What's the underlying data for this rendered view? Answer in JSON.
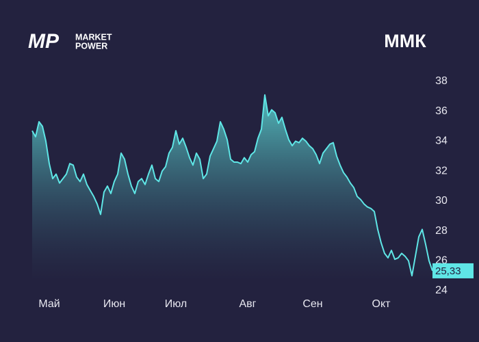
{
  "logo": {
    "mark": "MP",
    "line1": "MARKET",
    "line2": "POWER"
  },
  "chart_data": {
    "type": "area",
    "title": "ММК",
    "categories": [
      null,
      null,
      null,
      null,
      null,
      "Май",
      null,
      null,
      null,
      null,
      null,
      null,
      null,
      null,
      null,
      null,
      null,
      null,
      null,
      null,
      null,
      null,
      null,
      null,
      "Июн",
      null,
      null,
      null,
      null,
      null,
      null,
      null,
      null,
      null,
      null,
      null,
      null,
      null,
      null,
      null,
      null,
      null,
      "Июл",
      null,
      null,
      null,
      null,
      null,
      null,
      null,
      null,
      null,
      null,
      null,
      null,
      null,
      null,
      null,
      null,
      null,
      null,
      null,
      null,
      "Авг",
      null,
      null,
      null,
      null,
      null,
      null,
      null,
      null,
      null,
      null,
      null,
      null,
      null,
      null,
      null,
      null,
      null,
      null,
      "Сен",
      null,
      null,
      null,
      null,
      null,
      null,
      null,
      null,
      null,
      null,
      null,
      null,
      null,
      null,
      null,
      null,
      null,
      null,
      null,
      "Окт",
      null,
      null,
      null,
      null,
      null,
      null,
      null,
      null,
      null,
      null,
      null,
      null,
      null,
      null,
      null
    ],
    "values": [
      34.7,
      34.3,
      35.3,
      35.0,
      34.0,
      32.5,
      31.5,
      31.8,
      31.2,
      31.5,
      31.8,
      32.5,
      32.4,
      31.6,
      31.3,
      31.8,
      31.1,
      30.7,
      30.3,
      29.8,
      29.1,
      30.6,
      31.0,
      30.5,
      31.3,
      31.8,
      33.2,
      32.8,
      31.8,
      31.0,
      30.5,
      31.3,
      31.5,
      31.1,
      31.8,
      32.4,
      31.5,
      31.3,
      32.0,
      32.3,
      33.2,
      33.6,
      34.7,
      33.8,
      34.2,
      33.6,
      32.9,
      32.4,
      33.2,
      32.8,
      31.5,
      31.8,
      33.0,
      33.5,
      34.0,
      35.3,
      34.8,
      34.1,
      32.8,
      32.6,
      32.6,
      32.5,
      32.9,
      32.6,
      33.1,
      33.3,
      34.2,
      34.8,
      37.1,
      35.7,
      36.1,
      35.9,
      35.2,
      35.6,
      34.8,
      34.1,
      33.7,
      34.0,
      33.9,
      34.2,
      34.0,
      33.7,
      33.5,
      33.1,
      32.5,
      33.2,
      33.5,
      33.8,
      33.9,
      33.0,
      32.4,
      31.9,
      31.6,
      31.2,
      30.9,
      30.3,
      30.1,
      29.8,
      29.6,
      29.5,
      29.3,
      28.1,
      27.2,
      26.5,
      26.2,
      26.7,
      26.1,
      26.2,
      26.5,
      26.3,
      26.0,
      25.0,
      26.3,
      27.6,
      28.1,
      27.1,
      26.0,
      25.33
    ],
    "last_value_label": "25,33",
    "color": "#5fe6e6",
    "ylim": [
      24,
      38
    ],
    "yticks": [
      24,
      26,
      28,
      30,
      32,
      34,
      36,
      38
    ]
  }
}
